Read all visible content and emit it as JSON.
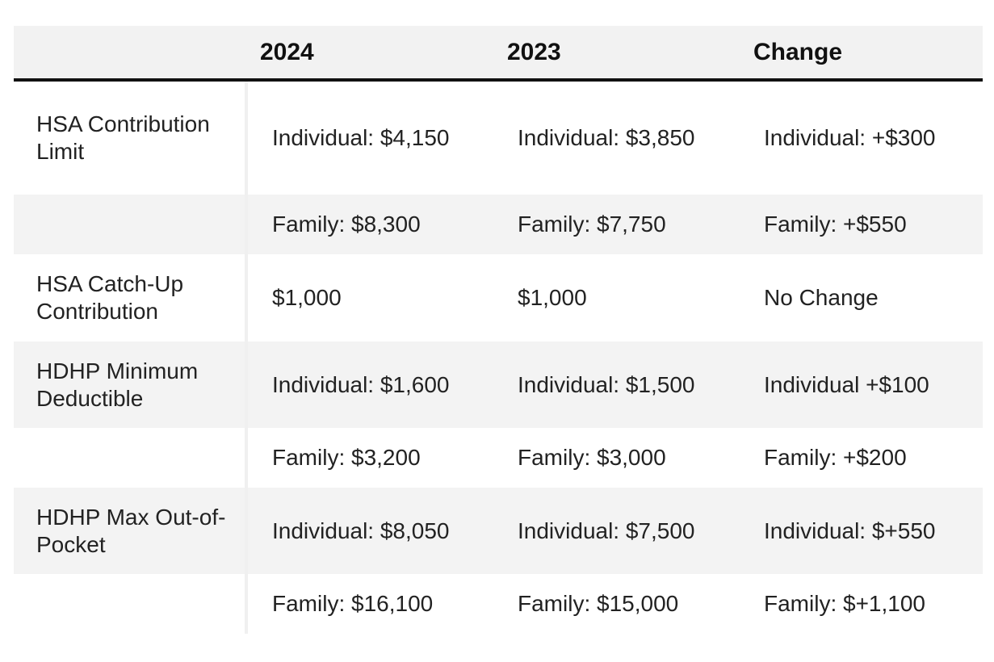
{
  "header": {
    "col_label": "",
    "col_2024": "2024",
    "col_2023": "2023",
    "col_change": "Change"
  },
  "rows": [
    {
      "label": "HSA Contribution Limit",
      "y2024": "Individual: $4,150",
      "y2023": "Individual: $3,850",
      "change": "Individual: +$300"
    },
    {
      "label": "",
      "y2024": "Family: $8,300",
      "y2023": "Family: $7,750",
      "change": "Family: +$550"
    },
    {
      "label": "HSA Catch-Up Contribution",
      "y2024": "$1,000",
      "y2023": "$1,000",
      "change": "No Change"
    },
    {
      "label": "HDHP Minimum Deductible",
      "y2024": "Individual: $1,600",
      "y2023": "Individual: $1,500",
      "change": "Individual +$100"
    },
    {
      "label": "",
      "y2024": "Family: $3,200",
      "y2023": "Family: $3,000",
      "change": "Family: +$200"
    },
    {
      "label": "HDHP Max Out-of-Pocket",
      "y2024": "Individual: $8,050",
      "y2023": "Individual: $7,500",
      "change": "Individual: $+550"
    },
    {
      "label": "",
      "y2024": "Family: $16,100",
      "y2023": "Family: $15,000",
      "change": "Family: $+1,100"
    }
  ]
}
